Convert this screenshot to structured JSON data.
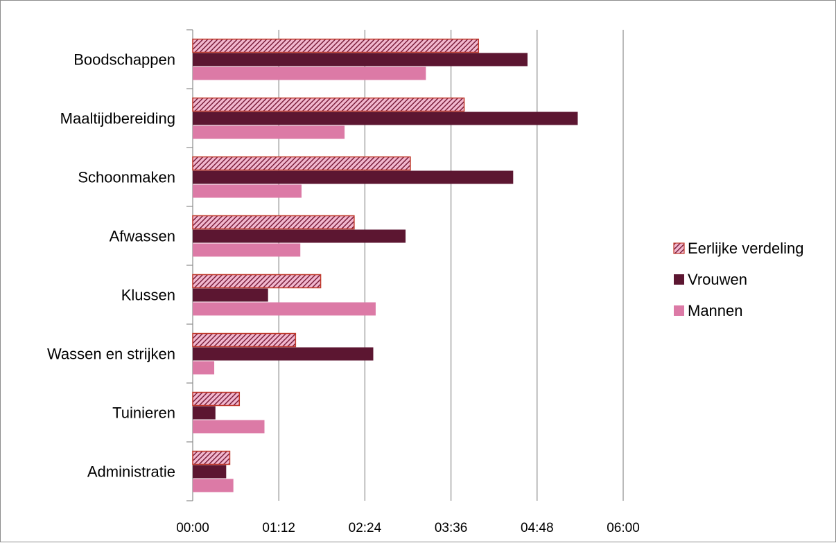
{
  "chart_data": {
    "type": "bar",
    "orientation": "horizontal",
    "categories": [
      "Boodschappen",
      "Maaltijdbereiding",
      "Schoonmaken",
      "Afwassen",
      "Klussen",
      "Wassen en strijken",
      "Tuinieren",
      "Administratie"
    ],
    "x_tick_labels": [
      "00:00",
      "01:12",
      "02:24",
      "03:36",
      "04:48",
      "06:00"
    ],
    "xlim_minutes": [
      0,
      360
    ],
    "x_tick_step_minutes": 72,
    "grid": "vertical major gridlines",
    "legend_position": "right",
    "series": [
      {
        "name": "Eerlijke verdeling",
        "color": "#8b2a4a",
        "pattern": "diagonal hatch, light pink on dark red",
        "values_minutes": [
          239,
          227,
          182,
          135,
          107,
          86,
          39,
          31
        ]
      },
      {
        "name": "Vrouwen",
        "color": "#5c1631",
        "values_minutes": [
          280,
          322,
          268,
          178,
          63,
          151,
          19,
          28
        ]
      },
      {
        "name": "Mannen",
        "color": "#dc7aa6",
        "values_minutes": [
          195,
          127,
          91,
          90,
          153,
          18,
          60,
          34
        ]
      }
    ]
  }
}
